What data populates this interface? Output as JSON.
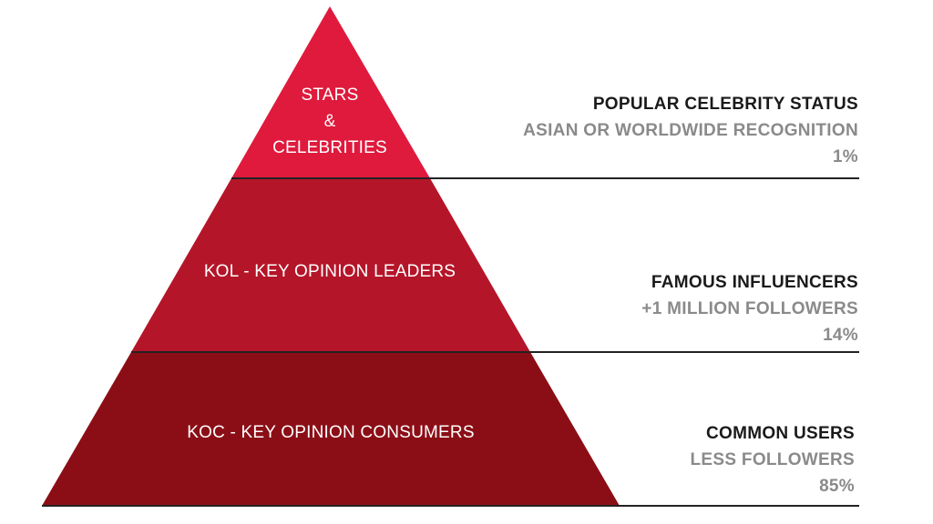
{
  "colors": {
    "top_tier": "#df1a3d",
    "middle_tier": "#b51529",
    "bottom_tier": "#8b0e16",
    "divider": "#222222",
    "heading_text": "#1a1a1a",
    "sub_text": "#8a8a8a"
  },
  "tiers": [
    {
      "label_lines": [
        "STARS",
        "&",
        "CELEBRITIES"
      ],
      "heading": "POPULAR CELEBRITY STATUS",
      "description": "ASIAN OR WORLDWIDE RECOGNITION",
      "percent": "1%"
    },
    {
      "label_lines": [
        "KOL - KEY OPINION LEADERS"
      ],
      "heading": "FAMOUS INFLUENCERS",
      "description": "+1 MILLION FOLLOWERS",
      "percent": "14%"
    },
    {
      "label_lines": [
        "KOC - KEY OPINION CONSUMERS"
      ],
      "heading": "COMMON USERS",
      "description": "LESS FOLLOWERS",
      "percent": "85%"
    }
  ]
}
